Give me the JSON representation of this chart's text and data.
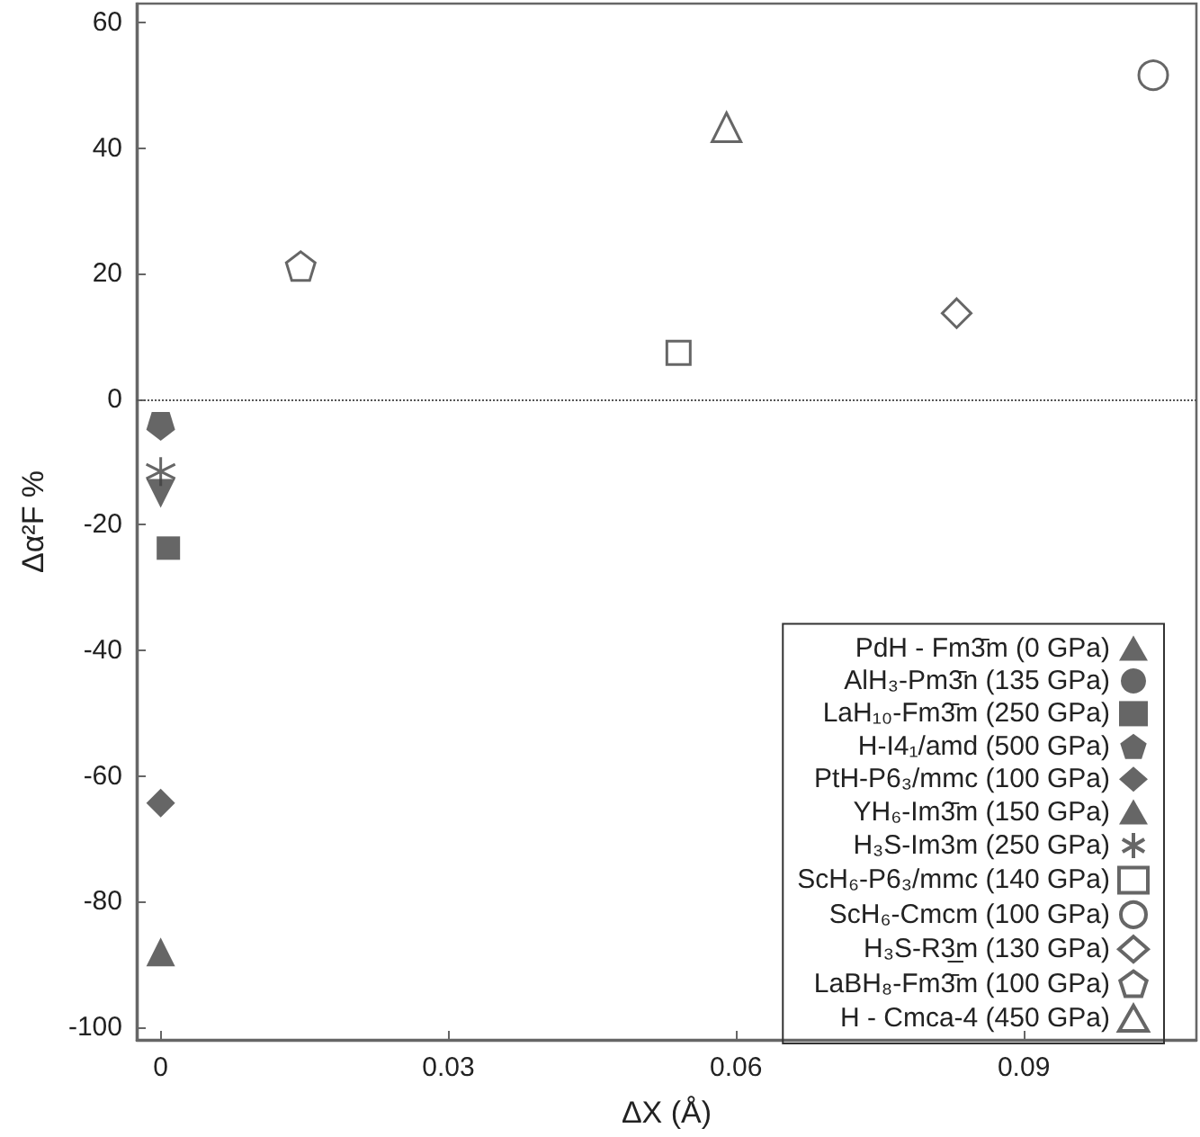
{
  "chart_data": {
    "type": "scatter",
    "xlabel": "ΔX (Å)",
    "ylabel": "Δα²F %",
    "xlim": [
      -0.0025,
      0.108
    ],
    "ylim": [
      -102,
      63
    ],
    "xticks": [
      0,
      0.03,
      0.06,
      0.09
    ],
    "yticks": [
      -100,
      -80,
      -60,
      -40,
      -20,
      0,
      20,
      40,
      60
    ],
    "legend": "bottom right",
    "ref_lines": [
      {
        "axis": "y",
        "value": 0,
        "line_style": "dotted",
        "color": "#555555"
      }
    ],
    "series": [
      {
        "name": "PdH - Fm3̄m (0 GPa)",
        "color": "#404040",
        "marker": "triangle",
        "x": [
          0
        ],
        "values": [
          -88
        ]
      },
      {
        "name": "AlH₃-Pm3̄n (135 GPa)",
        "color": "#404040",
        "marker": "circle",
        "x": [
          null
        ],
        "values": [
          null
        ]
      },
      {
        "name": "LaH₁₀-Fm3̄m (250 GPa)",
        "color": "#404040",
        "marker": "square",
        "x": [
          0.0008
        ],
        "values": [
          -23.7
        ]
      },
      {
        "name": "H-I4₁/amd (500 GPa)",
        "color": "#404040",
        "x": [
          0
        ],
        "values": [
          -4.3
        ]
      },
      {
        "name": "PtH-P6₃/mmc (100 GPa)",
        "color": "#404040",
        "marker": "diamond",
        "x": [
          0
        ],
        "values": [
          -64.3
        ]
      },
      {
        "name": "YH₆-Im3̄m (150 GPa)",
        "color": "#404040",
        "marker": "triangle-down",
        "x": [
          0
        ],
        "values": [
          -15
        ]
      },
      {
        "name": "H₃S-Im3m (250 GPa)",
        "color": "#404040",
        "marker": "cross",
        "x": [
          0
        ],
        "values": [
          -11.5
        ]
      },
      {
        "name": "ScH₆-P6₃/mmc (140 GPa)",
        "color": "#404040",
        "marker": "square-open",
        "x": [
          0.054
        ],
        "values": [
          7.4
        ]
      },
      {
        "name": "ScH₆-Cmcm (100 GPa)",
        "color": "#404040",
        "marker": "circle-open",
        "x": [
          0.1035
        ],
        "values": [
          51.6
        ]
      },
      {
        "name": "H₃S-R3̲m (130 GPa)",
        "color": "#404040",
        "marker": "diamond-open",
        "x": [
          0.083
        ],
        "values": [
          13.7
        ]
      },
      {
        "name": "LaBH₈-Fm3̄m (100 GPa)",
        "color": "#404040",
        "x": [
          0.0146
        ],
        "values": [
          21.2
        ]
      },
      {
        "name": "H - Cmca-4 (450 GPa)",
        "color": "#404040",
        "marker": "triangle-open",
        "x": [
          0.059
        ],
        "values": [
          43.3
        ]
      }
    ]
  }
}
